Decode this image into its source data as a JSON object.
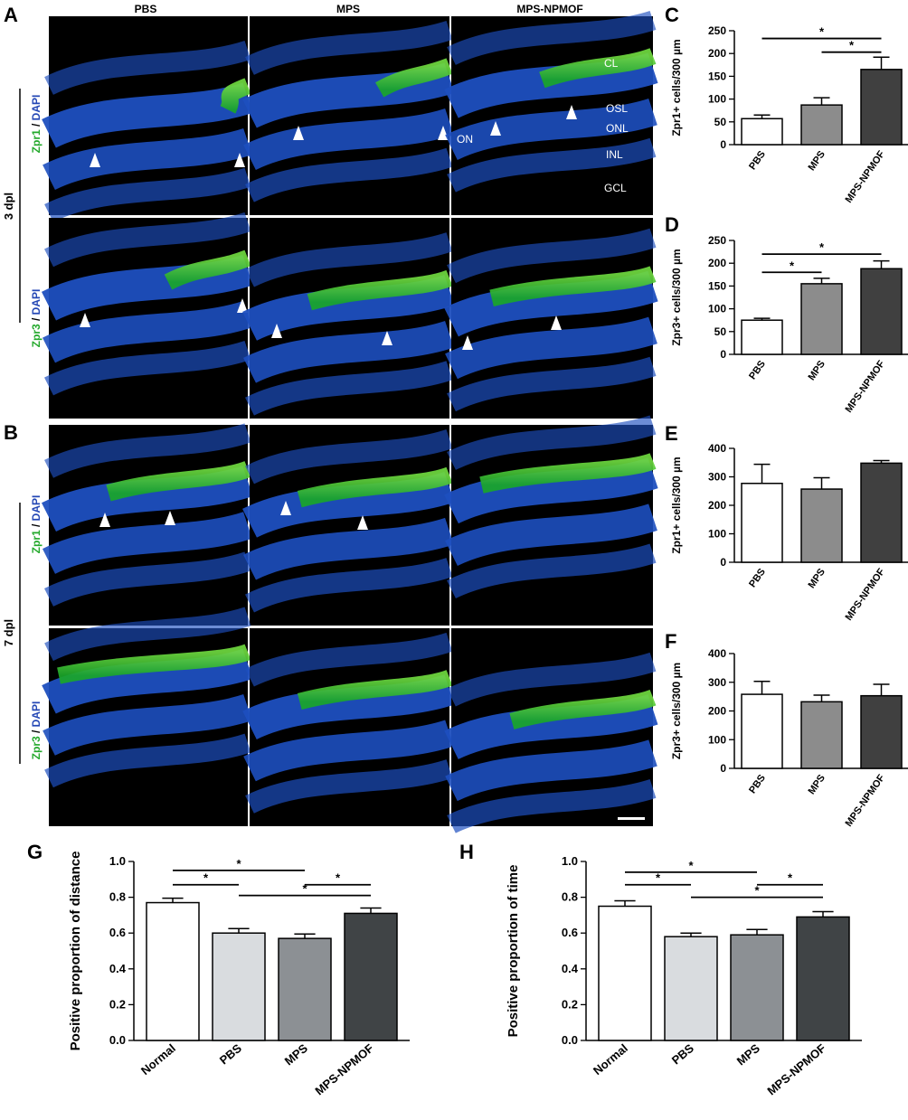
{
  "figure": {
    "panels": {
      "A": "A",
      "B": "B",
      "C": "C",
      "D": "D",
      "E": "E",
      "F": "F",
      "G": "G",
      "H": "H"
    },
    "column_titles": [
      "PBS",
      "MPS",
      "MPS-NPMOF"
    ],
    "time_labels": {
      "top": "3 dpl",
      "bottom": "7 dpl"
    },
    "row_labels": [
      {
        "marker": "Zpr1",
        "sep": " / ",
        "stain": "DAPI"
      },
      {
        "marker": "Zpr3",
        "sep": " / ",
        "stain": "DAPI"
      },
      {
        "marker": "Zpr1",
        "sep": " / ",
        "stain": "DAPI"
      },
      {
        "marker": "Zpr3",
        "sep": " / ",
        "stain": "DAPI"
      }
    ],
    "layer_labels": [
      "CL",
      "OSL",
      "ONL",
      "INL",
      "GCL",
      "ON"
    ],
    "colors": {
      "marker_green": "#22c02a",
      "dapi_blue": "#1d4fbf",
      "background": "#000000"
    }
  },
  "chart_data": [
    {
      "id": "C",
      "type": "bar",
      "categories": [
        "PBS",
        "MPS",
        "MPS-NPMOF"
      ],
      "values": [
        57,
        87,
        165
      ],
      "errors": [
        8,
        16,
        27
      ],
      "fills": [
        "#ffffff",
        "#8c8c8c",
        "#404040"
      ],
      "ylabel": "Zpr1+ cells/300 µm",
      "ylim": [
        0,
        250
      ],
      "yticks": [
        0,
        50,
        100,
        150,
        200,
        250
      ],
      "significance": [
        {
          "from": 0,
          "to": 2,
          "label": "*",
          "y": 233
        },
        {
          "from": 1,
          "to": 2,
          "label": "*",
          "y": 203
        }
      ]
    },
    {
      "id": "D",
      "type": "bar",
      "categories": [
        "PBS",
        "MPS",
        "MPS-NPMOF"
      ],
      "values": [
        75,
        155,
        188
      ],
      "errors": [
        4,
        12,
        17
      ],
      "fills": [
        "#ffffff",
        "#8c8c8c",
        "#404040"
      ],
      "ylabel": "Zpr3+ cells/300 µm",
      "ylim": [
        0,
        250
      ],
      "yticks": [
        0,
        50,
        100,
        150,
        200,
        250
      ],
      "significance": [
        {
          "from": 0,
          "to": 2,
          "label": "*",
          "y": 220
        },
        {
          "from": 0,
          "to": 1,
          "label": "*",
          "y": 180
        }
      ]
    },
    {
      "id": "E",
      "type": "bar",
      "categories": [
        "PBS",
        "MPS",
        "MPS-NPMOF"
      ],
      "values": [
        277,
        257,
        348
      ],
      "errors": [
        67,
        40,
        9
      ],
      "fills": [
        "#ffffff",
        "#8c8c8c",
        "#404040"
      ],
      "ylabel": "Zpr1+ cells/300 µm",
      "ylim": [
        0,
        400
      ],
      "yticks": [
        0,
        100,
        200,
        300,
        400
      ],
      "significance": []
    },
    {
      "id": "F",
      "type": "bar",
      "categories": [
        "PBS",
        "MPS",
        "MPS-NPMOF"
      ],
      "values": [
        258,
        232,
        253
      ],
      "errors": [
        45,
        23,
        40
      ],
      "fills": [
        "#ffffff",
        "#8c8c8c",
        "#404040"
      ],
      "ylabel": "Zpr3+ cells/300 µm",
      "ylim": [
        0,
        400
      ],
      "yticks": [
        0,
        100,
        200,
        300,
        400
      ],
      "significance": []
    },
    {
      "id": "G",
      "type": "bar",
      "categories": [
        "Normal",
        "PBS",
        "MPS",
        "MPS-NPMOF"
      ],
      "values": [
        0.77,
        0.6,
        0.57,
        0.71
      ],
      "errors": [
        0.025,
        0.025,
        0.025,
        0.03
      ],
      "fills": [
        "#ffffff",
        "#d9dcdf",
        "#8c9094",
        "#404446"
      ],
      "ylabel": "Positive proportion of distance",
      "ylim": [
        0,
        1.0
      ],
      "yticks": [
        0.0,
        0.2,
        0.4,
        0.6,
        0.8,
        1.0
      ],
      "significance": [
        {
          "from": 0,
          "to": 2,
          "label": "*",
          "y": 0.95
        },
        {
          "from": 0,
          "to": 1,
          "label": "*",
          "y": 0.87
        },
        {
          "from": 2,
          "to": 3,
          "label": "*",
          "y": 0.87
        },
        {
          "from": 1,
          "to": 3,
          "label": "*",
          "y": 0.81
        }
      ]
    },
    {
      "id": "H",
      "type": "bar",
      "categories": [
        "Normal",
        "PBS",
        "MPS",
        "MPS-NPMOF"
      ],
      "values": [
        0.75,
        0.58,
        0.59,
        0.69
      ],
      "errors": [
        0.03,
        0.02,
        0.03,
        0.03
      ],
      "fills": [
        "#ffffff",
        "#d9dcdf",
        "#8c9094",
        "#404446"
      ],
      "ylabel": "Positive proportion of time",
      "ylim": [
        0,
        1.0
      ],
      "yticks": [
        0.0,
        0.2,
        0.4,
        0.6,
        0.8,
        1.0
      ],
      "significance": [
        {
          "from": 0,
          "to": 2,
          "label": "*",
          "y": 0.94
        },
        {
          "from": 0,
          "to": 1,
          "label": "*",
          "y": 0.87
        },
        {
          "from": 2,
          "to": 3,
          "label": "*",
          "y": 0.87
        },
        {
          "from": 1,
          "to": 3,
          "label": "*",
          "y": 0.8
        }
      ]
    }
  ]
}
